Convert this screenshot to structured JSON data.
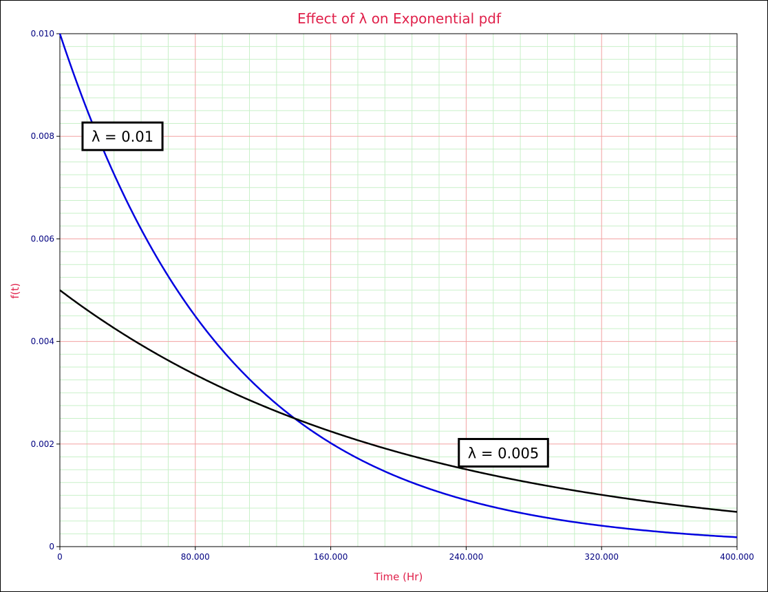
{
  "chart_data": {
    "type": "line",
    "title": "Effect of λ on Exponential pdf",
    "xlabel": "Time (Hr)",
    "ylabel": "f(t)",
    "xlim": [
      0,
      400
    ],
    "ylim": [
      0,
      0.01
    ],
    "x_ticks": [
      "0",
      "80.000",
      "160.000",
      "240.000",
      "320.000",
      "400.000"
    ],
    "y_ticks": [
      "0",
      "0.002",
      "0.004",
      "0.006",
      "0.008",
      "0.010"
    ],
    "grid": true,
    "series": [
      {
        "lambda": 0.01,
        "color": "#0000e0",
        "x": [
          0,
          20,
          40,
          60,
          80,
          100,
          120,
          140,
          160,
          180,
          200,
          220,
          240,
          260,
          280,
          300,
          320,
          340,
          360,
          380,
          400
        ],
        "y": [
          0.01,
          0.008187,
          0.006703,
          0.005488,
          0.004493,
          0.003679,
          0.003012,
          0.002466,
          0.002019,
          0.001653,
          0.001353,
          0.001108,
          0.000907,
          0.000743,
          0.000608,
          0.000498,
          0.000408,
          0.000334,
          0.000273,
          0.000224,
          0.000183
        ]
      },
      {
        "lambda": 0.005,
        "color": "#000000",
        "x": [
          0,
          20,
          40,
          60,
          80,
          100,
          120,
          140,
          160,
          180,
          200,
          220,
          240,
          260,
          280,
          300,
          320,
          340,
          360,
          380,
          400
        ],
        "y": [
          0.005,
          0.004524,
          0.004094,
          0.003704,
          0.003352,
          0.003033,
          0.002744,
          0.002483,
          0.002247,
          0.002033,
          0.001839,
          0.001664,
          0.001506,
          0.001363,
          0.001233,
          0.001116,
          0.001009,
          0.000913,
          0.000826,
          0.000748,
          0.000677
        ]
      }
    ],
    "annotations": [
      {
        "text": "λ = 0.01",
        "x": 37,
        "y": 0.008
      },
      {
        "text": "λ = 0.005",
        "x": 262,
        "y": 0.00183
      }
    ]
  },
  "colors": {
    "major_grid": "#f2a0a0",
    "minor_grid": "#c8f0c8",
    "title_color": "#e0204a",
    "tick_color": "#000080"
  }
}
